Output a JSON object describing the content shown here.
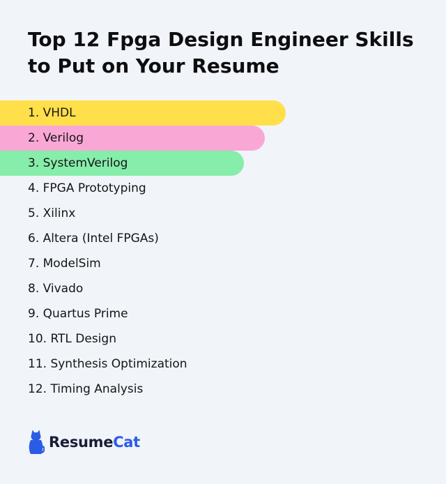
{
  "title": "Top 12 Fpga Design Engineer Skills to Put on Your Resume",
  "skills": [
    {
      "label": "1. VHDL",
      "highlight": "#ffe04a"
    },
    {
      "label": "2. Verilog",
      "highlight": "#f9a8d6"
    },
    {
      "label": "3. SystemVerilog",
      "highlight": "#86edaa"
    },
    {
      "label": "4. FPGA Prototyping"
    },
    {
      "label": "5. Xilinx"
    },
    {
      "label": "6. Altera (Intel FPGAs)"
    },
    {
      "label": "7. ModelSim"
    },
    {
      "label": "8. Vivado"
    },
    {
      "label": "9. Quartus Prime"
    },
    {
      "label": "10. RTL Design"
    },
    {
      "label": "11. Synthesis Optimization"
    },
    {
      "label": "12. Timing Analysis"
    }
  ],
  "brand": {
    "name_part1": "Resume",
    "name_part2": "Cat",
    "icon": "cat-icon",
    "text_color": "#1a1d38",
    "accent_color": "#2a5ce6"
  },
  "colors": {
    "background": "#f1f4f9",
    "text": "#111111"
  }
}
